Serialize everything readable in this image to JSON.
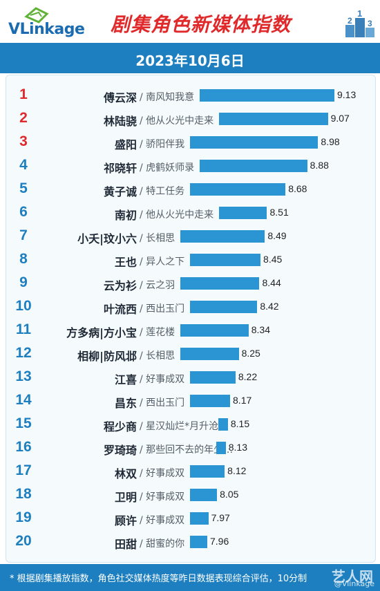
{
  "header": {
    "logo_text": "VLinkage",
    "title": "剧集角色新媒体指数"
  },
  "date": "2023年10月6日",
  "footer": {
    "note": "* 根据剧集播放指数，角色社交媒体热度等昨日数据表现综合评估，10分制",
    "watermark": "艺人网",
    "watermark_handle": "@Vlinkage"
  },
  "colors": {
    "top3_rank": "#e0292b",
    "rank": "#1d7fc0",
    "bar": "#2a95d2",
    "band": "#1d7fc0"
  },
  "chart_data": {
    "type": "bar",
    "orientation": "horizontal",
    "title": "剧集角色新媒体指数",
    "subtitle": "2023年10月6日",
    "xlim": [
      7.0,
      9.3
    ],
    "rows": [
      {
        "rank": "1",
        "name": "傅云深",
        "drama": "/ 南风知我意",
        "value": 9.13
      },
      {
        "rank": "2",
        "name": "林陆骁",
        "drama": "/ 他从火光中走来",
        "value": 9.07
      },
      {
        "rank": "3",
        "name": "盛阳",
        "drama": "/ 骄阳伴我",
        "value": 8.98
      },
      {
        "rank": "4",
        "name": "祁晓轩",
        "drama": "/ 虎鹤妖师录",
        "value": 8.88
      },
      {
        "rank": "5",
        "name": "黄子诚",
        "drama": "/ 特工任务",
        "value": 8.68
      },
      {
        "rank": "6",
        "name": "南初",
        "drama": "/ 他从火光中走来",
        "value": 8.51
      },
      {
        "rank": "7",
        "name": "小夭|玟小六",
        "drama": "/ 长相思",
        "value": 8.49
      },
      {
        "rank": "8",
        "name": "王也",
        "drama": "/ 异人之下",
        "value": 8.45
      },
      {
        "rank": "9",
        "name": "云为衫",
        "drama": "/ 云之羽",
        "value": 8.44
      },
      {
        "rank": "10",
        "name": "叶流西",
        "drama": "/ 西出玉门",
        "value": 8.42
      },
      {
        "rank": "11",
        "name": "方多病|方小宝",
        "drama": "/ 莲花楼",
        "value": 8.34
      },
      {
        "rank": "12",
        "name": "相柳|防风邶",
        "drama": "/ 长相思",
        "value": 8.25
      },
      {
        "rank": "13",
        "name": "江喜",
        "drama": "/ 好事成双",
        "value": 8.22
      },
      {
        "rank": "14",
        "name": "昌东",
        "drama": "/ 西出玉门",
        "value": 8.17
      },
      {
        "rank": "15",
        "name": "程少商",
        "drama": "/ 星汉灿烂*月升沧海",
        "value": 8.15
      },
      {
        "rank": "16",
        "name": "罗琦琦",
        "drama": "/ 那些回不去的年少…",
        "value": 8.13
      },
      {
        "rank": "17",
        "name": "林双",
        "drama": "/ 好事成双",
        "value": 8.12
      },
      {
        "rank": "18",
        "name": "卫明",
        "drama": "/ 好事成双",
        "value": 8.05
      },
      {
        "rank": "19",
        "name": "顾许",
        "drama": "/ 好事成双",
        "value": 7.97
      },
      {
        "rank": "20",
        "name": "田甜",
        "drama": "/ 甜蜜的你",
        "value": 7.96
      }
    ]
  }
}
